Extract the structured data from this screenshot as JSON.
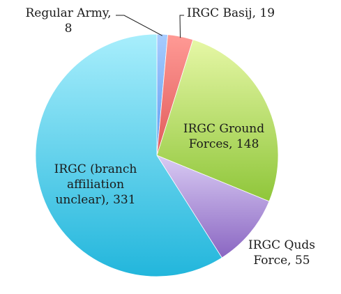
{
  "chart_data": {
    "type": "pie",
    "title": "",
    "slices": [
      {
        "label": "Regular Army",
        "value": 8,
        "color": "#5b9bf0",
        "color_light": "#a8ccff",
        "label_lines": [
          "Regular Army,",
          "8"
        ]
      },
      {
        "label": "IRGC Basij",
        "value": 19,
        "color": "#e05a5a",
        "color_light": "#ff9a95",
        "label_lines": [
          "IRGC Basij, 19"
        ]
      },
      {
        "label": "IRGC Ground Forces",
        "value": 148,
        "color": "#8fc63a",
        "color_light": "#e6f7a6",
        "label_lines": [
          "IRGC Ground",
          "Forces, 148"
        ]
      },
      {
        "label": "IRGC Quds Force",
        "value": 55,
        "color": "#8a66c2",
        "color_light": "#d9cbf3",
        "label_lines": [
          "IRGC Quds",
          "Force, 55"
        ]
      },
      {
        "label": "IRGC (branch affiliation unclear)",
        "value": 331,
        "color": "#22b6dc",
        "color_light": "#a8eefc",
        "label_lines": [
          "IRGC (branch",
          "affiliation",
          "unclear), 331"
        ]
      }
    ]
  }
}
